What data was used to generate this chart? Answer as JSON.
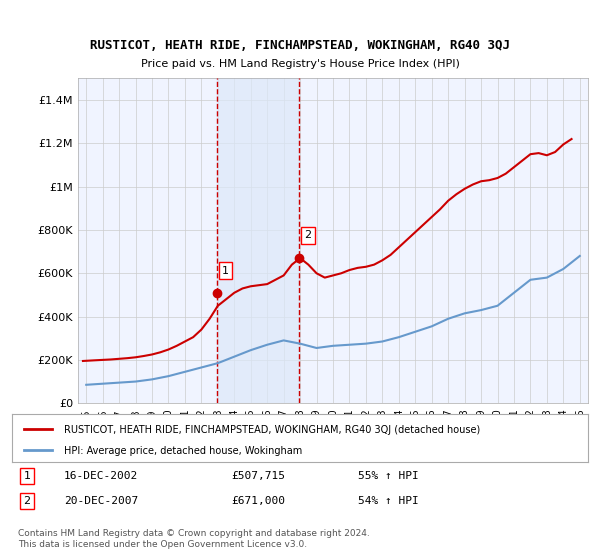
{
  "title": "RUSTICOT, HEATH RIDE, FINCHAMPSTEAD, WOKINGHAM, RG40 3QJ",
  "subtitle": "Price paid vs. HM Land Registry's House Price Index (HPI)",
  "background_color": "#ffffff",
  "plot_bg_color": "#f0f4ff",
  "grid_color": "#cccccc",
  "red_line_color": "#cc0000",
  "blue_line_color": "#6699cc",
  "dashed_line_color": "#cc0000",
  "shade_color": "#dde8f8",
  "ylim": [
    0,
    1500000
  ],
  "yticks": [
    0,
    200000,
    400000,
    600000,
    800000,
    1000000,
    1200000,
    1400000
  ],
  "ytick_labels": [
    "£0",
    "£200K",
    "£400K",
    "£600K",
    "£800K",
    "£1M",
    "£1.2M",
    "£1.4M"
  ],
  "xlim_start": 1994.5,
  "xlim_end": 2025.5,
  "xtick_years": [
    1995,
    1996,
    1997,
    1998,
    1999,
    2000,
    2001,
    2002,
    2003,
    2004,
    2005,
    2006,
    2007,
    2008,
    2009,
    2010,
    2011,
    2012,
    2013,
    2014,
    2015,
    2016,
    2017,
    2018,
    2019,
    2020,
    2021,
    2022,
    2023,
    2024,
    2025
  ],
  "vline1_x": 2002.96,
  "vline2_x": 2007.96,
  "shade_x1": 2002.96,
  "shade_x2": 2007.96,
  "marker1_x": 2002.96,
  "marker1_y": 507715,
  "marker2_x": 2007.96,
  "marker2_y": 671000,
  "label1_text": "1",
  "label2_text": "2",
  "legend_red_label": "RUSTICOT, HEATH RIDE, FINCHAMPSTEAD, WOKINGHAM, RG40 3QJ (detached house)",
  "legend_blue_label": "HPI: Average price, detached house, Wokingham",
  "table_row1": "1    16-DEC-2002    £507,715    55% ↑ HPI",
  "table_row2": "2    20-DEC-2007    £671,000    54% ↑ HPI",
  "footer": "Contains HM Land Registry data © Crown copyright and database right 2024.\nThis data is licensed under the Open Government Licence v3.0.",
  "hpi_years": [
    1995,
    1996,
    1997,
    1998,
    1999,
    2000,
    2001,
    2002,
    2003,
    2004,
    2005,
    2006,
    2007,
    2008,
    2009,
    2010,
    2011,
    2012,
    2013,
    2014,
    2015,
    2016,
    2017,
    2018,
    2019,
    2020,
    2021,
    2022,
    2023,
    2024,
    2025
  ],
  "hpi_values": [
    85000,
    90000,
    95000,
    100000,
    110000,
    125000,
    145000,
    165000,
    185000,
    215000,
    245000,
    270000,
    290000,
    275000,
    255000,
    265000,
    270000,
    275000,
    285000,
    305000,
    330000,
    355000,
    390000,
    415000,
    430000,
    450000,
    510000,
    570000,
    580000,
    620000,
    680000
  ],
  "price_years": [
    1994.8,
    1995.5,
    1996.0,
    1996.5,
    1997.0,
    1997.5,
    1998.0,
    1998.5,
    1999.0,
    1999.5,
    2000.0,
    2000.5,
    2001.0,
    2001.5,
    2002.0,
    2002.5,
    2003.0,
    2003.5,
    2004.0,
    2004.5,
    2005.0,
    2005.5,
    2006.0,
    2006.5,
    2007.0,
    2007.5,
    2008.0,
    2008.5,
    2009.0,
    2009.5,
    2010.0,
    2010.5,
    2011.0,
    2011.5,
    2012.0,
    2012.5,
    2013.0,
    2013.5,
    2014.0,
    2014.5,
    2015.0,
    2015.5,
    2016.0,
    2016.5,
    2017.0,
    2017.5,
    2018.0,
    2018.5,
    2019.0,
    2019.5,
    2020.0,
    2020.5,
    2021.0,
    2021.5,
    2022.0,
    2022.5,
    2023.0,
    2023.5,
    2024.0,
    2024.5
  ],
  "price_values": [
    195000,
    198000,
    200000,
    202000,
    205000,
    208000,
    212000,
    218000,
    225000,
    235000,
    248000,
    265000,
    285000,
    305000,
    340000,
    390000,
    450000,
    480000,
    510000,
    530000,
    540000,
    545000,
    550000,
    570000,
    590000,
    640000,
    670000,
    640000,
    600000,
    580000,
    590000,
    600000,
    615000,
    625000,
    630000,
    640000,
    660000,
    685000,
    720000,
    755000,
    790000,
    825000,
    860000,
    895000,
    935000,
    965000,
    990000,
    1010000,
    1025000,
    1030000,
    1040000,
    1060000,
    1090000,
    1120000,
    1150000,
    1155000,
    1145000,
    1160000,
    1195000,
    1220000
  ]
}
